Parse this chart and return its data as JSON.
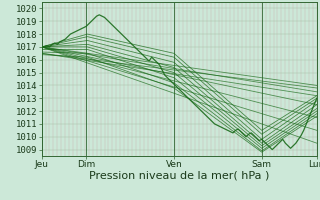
{
  "background_color": "#cce8d8",
  "line_color": "#1a6b1a",
  "ylim": [
    1008.5,
    1020.5
  ],
  "yticks": [
    1009,
    1010,
    1011,
    1012,
    1013,
    1014,
    1015,
    1016,
    1017,
    1018,
    1019,
    1020
  ],
  "xlabel": "Pression niveau de la mer( hPa )",
  "xlabel_fontsize": 8,
  "tick_label_fontsize": 6.5,
  "day_labels": [
    "Jeu",
    "Dim",
    "Ven",
    "Sam",
    "Lun"
  ],
  "total_steps": 210,
  "day_steps": [
    0,
    34,
    101,
    168,
    210
  ],
  "straight_lines": [
    [
      0,
      1017.0,
      210,
      1009.5
    ],
    [
      0,
      1017.0,
      210,
      1010.5
    ],
    [
      0,
      1017.0,
      210,
      1011.5
    ],
    [
      0,
      1017.0,
      210,
      1012.5
    ],
    [
      0,
      1017.0,
      210,
      1013.5
    ],
    [
      0,
      1017.0,
      210,
      1014.0
    ],
    [
      0,
      1016.5,
      210,
      1013.2
    ],
    [
      0,
      1016.5,
      210,
      1013.8
    ]
  ],
  "jagged_line": [
    0,
    1016.9,
    2,
    1017.0,
    4,
    1017.1,
    6,
    1017.0,
    8,
    1017.2,
    10,
    1017.3,
    12,
    1017.2,
    14,
    1017.4,
    16,
    1017.5,
    18,
    1017.6,
    20,
    1017.8,
    22,
    1018.0,
    24,
    1018.1,
    26,
    1018.2,
    28,
    1018.3,
    30,
    1018.4,
    32,
    1018.5,
    34,
    1018.6,
    36,
    1018.8,
    38,
    1019.0,
    40,
    1019.2,
    42,
    1019.4,
    44,
    1019.5,
    46,
    1019.4,
    48,
    1019.3,
    50,
    1019.1,
    52,
    1018.9,
    54,
    1018.7,
    56,
    1018.5,
    58,
    1018.3,
    60,
    1018.1,
    62,
    1017.9,
    64,
    1017.7,
    66,
    1017.5,
    68,
    1017.3,
    70,
    1017.1,
    72,
    1016.9,
    74,
    1016.7,
    76,
    1016.5,
    78,
    1016.3,
    80,
    1016.1,
    82,
    1015.9,
    84,
    1016.2,
    86,
    1016.0,
    88,
    1015.8,
    90,
    1015.6,
    92,
    1015.2,
    94,
    1014.8,
    96,
    1014.6,
    98,
    1014.4,
    100,
    1014.2,
    102,
    1014.0,
    104,
    1013.8,
    106,
    1013.6,
    108,
    1013.4,
    110,
    1013.2,
    112,
    1013.0,
    114,
    1012.8,
    116,
    1012.6,
    118,
    1012.4,
    120,
    1012.2,
    122,
    1012.0,
    124,
    1011.8,
    126,
    1011.6,
    128,
    1011.4,
    130,
    1011.2,
    132,
    1011.0,
    134,
    1010.9,
    136,
    1010.8,
    138,
    1010.7,
    140,
    1010.6,
    142,
    1010.5,
    144,
    1010.4,
    146,
    1010.3,
    148,
    1010.5,
    150,
    1010.6,
    152,
    1010.4,
    154,
    1010.2,
    156,
    1010.0,
    158,
    1010.2,
    160,
    1010.3,
    162,
    1010.1,
    164,
    1009.9,
    166,
    1009.7,
    168,
    1009.8,
    170,
    1009.6,
    172,
    1009.4,
    174,
    1009.2,
    176,
    1009.0,
    178,
    1009.2,
    180,
    1009.4,
    182,
    1009.6,
    184,
    1009.8,
    186,
    1009.5,
    188,
    1009.3,
    190,
    1009.1,
    192,
    1009.3,
    194,
    1009.5,
    196,
    1009.8,
    198,
    1010.1,
    200,
    1010.5,
    202,
    1011.0,
    204,
    1011.5,
    206,
    1012.0,
    208,
    1012.5,
    210,
    1013.0
  ],
  "fan_lines": [
    [
      0,
      1017.0,
      35,
      1018.0,
      101,
      1016.5,
      168,
      1010.5,
      210,
      1013.2
    ],
    [
      0,
      1017.0,
      35,
      1017.8,
      101,
      1016.2,
      168,
      1010.2,
      210,
      1013.0
    ],
    [
      0,
      1017.0,
      35,
      1017.5,
      101,
      1015.8,
      168,
      1009.8,
      210,
      1012.8
    ],
    [
      0,
      1017.0,
      35,
      1017.2,
      101,
      1015.4,
      168,
      1009.5,
      210,
      1012.5
    ],
    [
      0,
      1017.0,
      35,
      1017.0,
      101,
      1015.0,
      168,
      1009.3,
      210,
      1012.2
    ],
    [
      0,
      1016.8,
      35,
      1016.8,
      101,
      1014.6,
      168,
      1009.1,
      210,
      1012.0
    ],
    [
      0,
      1016.6,
      35,
      1016.5,
      101,
      1014.2,
      168,
      1008.9,
      210,
      1011.8
    ],
    [
      0,
      1016.4,
      35,
      1016.2,
      101,
      1013.8,
      168,
      1008.8,
      210,
      1011.6
    ]
  ]
}
